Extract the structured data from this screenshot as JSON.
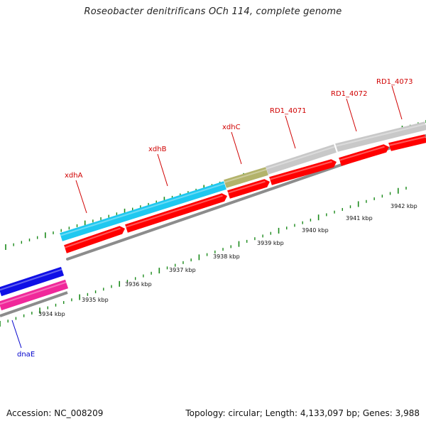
{
  "title": "Roseobacter denitrificans OCh 114, complete genome",
  "footer": {
    "accession": "Accession: NC_008209",
    "summary": "Topology: circular; Length: 4,133,097 bp; Genes: 3,988"
  },
  "colors": {
    "gene_forward": "#ff0000",
    "gene_xdhA": "#1ec8f0",
    "gene_xdhC": "#b3b36b",
    "gene_hypothetical": "#c8c8c8",
    "gene_dnaE_blue": "#1010e6",
    "gene_dnaE_pink": "#f0289a",
    "backbone": "#8c8c8c",
    "tick": "#1a8a1a",
    "label_red": "#d00000",
    "label_blue": "#0000cc"
  },
  "ruler": {
    "unit": "kbp",
    "labels": [
      "3934 kbp",
      "3935 kbp",
      "3936 kbp",
      "3937 kbp",
      "3938 kbp",
      "3939 kbp",
      "3940 kbp",
      "3941 kbp",
      "3942 kbp"
    ]
  },
  "genes": [
    {
      "name": "xdhA",
      "color_key": "gene_xdhA",
      "label_color": "label_red"
    },
    {
      "name": "xdhB",
      "color_key": "gene_xdhA",
      "label_color": "label_red"
    },
    {
      "name": "xdhC",
      "color_key": "gene_xdhC",
      "label_color": "label_red"
    },
    {
      "name": "RD1_4071",
      "color_key": "gene_hypothetical",
      "label_color": "label_red"
    },
    {
      "name": "RD1_4072",
      "color_key": "gene_hypothetical",
      "label_color": "label_red"
    },
    {
      "name": "RD1_4073",
      "color_key": "gene_hypothetical",
      "label_color": "label_red"
    },
    {
      "name": "dnaE",
      "color_key": "gene_dnaE_blue",
      "label_color": "label_blue"
    }
  ]
}
